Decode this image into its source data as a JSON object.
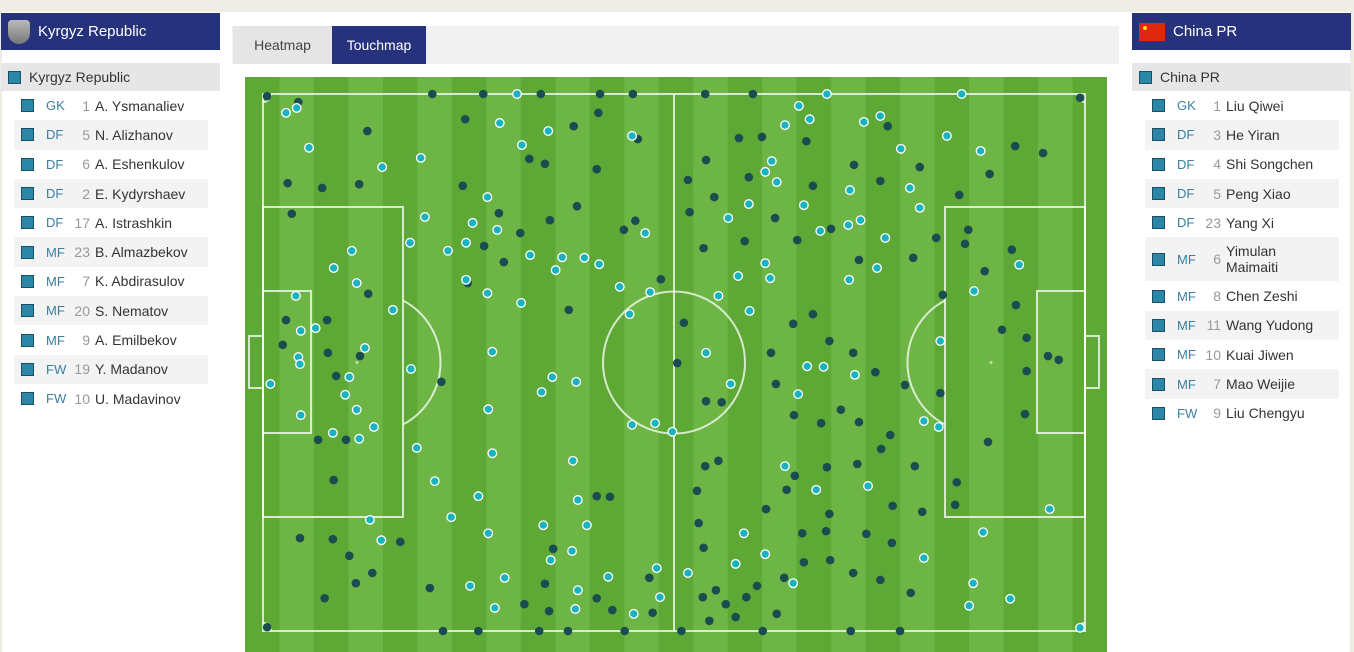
{
  "tabs": [
    {
      "label": "Heatmap",
      "active": false
    },
    {
      "label": "Touchmap",
      "active": true
    }
  ],
  "colors": {
    "header": "#27327c",
    "pitch_light": "#6db544",
    "pitch_dark": "#5ea935",
    "team_a_dot": "#1b4c50",
    "team_b_dot": "#1ab2bf"
  },
  "home": {
    "name": "Kyrgyz Republic",
    "icon": "shield-icon",
    "team_label": "Kyrgyz Republic",
    "players": [
      {
        "pos": "GK",
        "num": "1",
        "name": "A. Ysmanaliev"
      },
      {
        "pos": "DF",
        "num": "5",
        "name": "N. Alizhanov"
      },
      {
        "pos": "DF",
        "num": "6",
        "name": "A. Eshenkulov"
      },
      {
        "pos": "DF",
        "num": "2",
        "name": "E. Kydyrshaev"
      },
      {
        "pos": "DF",
        "num": "17",
        "name": "A. Istrashkin"
      },
      {
        "pos": "MF",
        "num": "23",
        "name": "B. Almazbekov"
      },
      {
        "pos": "MF",
        "num": "7",
        "name": "K. Abdirasulov"
      },
      {
        "pos": "MF",
        "num": "20",
        "name": "S. Nematov"
      },
      {
        "pos": "MF",
        "num": "9",
        "name": "A. Emilbekov"
      },
      {
        "pos": "FW",
        "num": "19",
        "name": "Y. Madanov"
      },
      {
        "pos": "FW",
        "num": "10",
        "name": "U. Madavinov"
      }
    ]
  },
  "away": {
    "name": "China PR",
    "icon": "china-flag-icon",
    "team_label": "China PR",
    "players": [
      {
        "pos": "GK",
        "num": "1",
        "name": "Liu Qiwei"
      },
      {
        "pos": "DF",
        "num": "3",
        "name": "He Yiran"
      },
      {
        "pos": "DF",
        "num": "4",
        "name": "Shi Songchen"
      },
      {
        "pos": "DF",
        "num": "5",
        "name": "Peng Xiao"
      },
      {
        "pos": "DF",
        "num": "23",
        "name": "Yang Xi"
      },
      {
        "pos": "MF",
        "num": "6",
        "name": "Yimulan Maimaiti"
      },
      {
        "pos": "MF",
        "num": "8",
        "name": "Chen Zeshi"
      },
      {
        "pos": "MF",
        "num": "11",
        "name": "Wang Yudong"
      },
      {
        "pos": "MF",
        "num": "10",
        "name": "Kuai Jiwen"
      },
      {
        "pos": "MF",
        "num": "7",
        "name": "Mao Weijie"
      },
      {
        "pos": "FW",
        "num": "9",
        "name": "Liu Chengyu"
      }
    ]
  },
  "touches": {
    "dark": [
      [
        0.5,
        0.4
      ],
      [
        20.6,
        0
      ],
      [
        26.8,
        0
      ],
      [
        33.8,
        0
      ],
      [
        41,
        0
      ],
      [
        45,
        0
      ],
      [
        53.8,
        0
      ],
      [
        59.6,
        0
      ],
      [
        4.3,
        1.5
      ],
      [
        12.7,
        6.9
      ],
      [
        24.6,
        4.7
      ],
      [
        37.8,
        6
      ],
      [
        40.8,
        3.5
      ],
      [
        45.6,
        8.4
      ],
      [
        34.3,
        13
      ],
      [
        40.6,
        14
      ],
      [
        32.4,
        12.1
      ],
      [
        3,
        16.6
      ],
      [
        7.2,
        17.5
      ],
      [
        11.7,
        16.8
      ],
      [
        24.3,
        17.1
      ],
      [
        3.5,
        22.3
      ],
      [
        28.7,
        22.2
      ],
      [
        31.3,
        25.9
      ],
      [
        38.2,
        20.9
      ],
      [
        34.9,
        23.5
      ],
      [
        43.9,
        25.3
      ],
      [
        45.3,
        23.6
      ],
      [
        26.9,
        28.3
      ],
      [
        29.3,
        31.3
      ],
      [
        24.9,
        35.2
      ],
      [
        12.8,
        37.2
      ],
      [
        7.8,
        42.1
      ],
      [
        2.8,
        42.1
      ],
      [
        2.4,
        46.7
      ],
      [
        7.9,
        48.2
      ],
      [
        11.8,
        48.8
      ],
      [
        8.9,
        52.5
      ],
      [
        10.1,
        64.4
      ],
      [
        6.7,
        64.4
      ],
      [
        8.6,
        71.9
      ],
      [
        21.7,
        53.6
      ],
      [
        37.2,
        40.2
      ],
      [
        48.4,
        34.5
      ],
      [
        51.2,
        42.6
      ],
      [
        50.4,
        50.1
      ],
      [
        53.9,
        57.2
      ],
      [
        55.8,
        57.4
      ],
      [
        53.8,
        69.3
      ],
      [
        55.4,
        68.3
      ],
      [
        52.8,
        73.9
      ],
      [
        53,
        79.9
      ],
      [
        53.6,
        84.5
      ],
      [
        55.1,
        92.4
      ],
      [
        53.5,
        93.7
      ],
      [
        56.3,
        95
      ],
      [
        58.8,
        93.7
      ],
      [
        60.1,
        91.6
      ],
      [
        63.4,
        90.1
      ],
      [
        65.8,
        87.2
      ],
      [
        68.5,
        81.4
      ],
      [
        69,
        86.8
      ],
      [
        71.8,
        89.2
      ],
      [
        75.1,
        90.5
      ],
      [
        78.8,
        92.9
      ],
      [
        73.4,
        81.9
      ],
      [
        76.5,
        83.6
      ],
      [
        80.2,
        77.8
      ],
      [
        76.6,
        76.7
      ],
      [
        68.9,
        78.2
      ],
      [
        65.6,
        81.8
      ],
      [
        63.7,
        73.7
      ],
      [
        61.2,
        77.3
      ],
      [
        64.7,
        71.1
      ],
      [
        68.6,
        69.5
      ],
      [
        72.3,
        68.9
      ],
      [
        75.2,
        66.1
      ],
      [
        79.3,
        69.3
      ],
      [
        76.3,
        63.5
      ],
      [
        72.5,
        61.1
      ],
      [
        70.3,
        58.8
      ],
      [
        67.9,
        61.3
      ],
      [
        64.6,
        59.8
      ],
      [
        62.4,
        54
      ],
      [
        61.8,
        48.2
      ],
      [
        64.5,
        42.8
      ],
      [
        66.9,
        41
      ],
      [
        68.9,
        46
      ],
      [
        71.8,
        48.2
      ],
      [
        74.5,
        51.8
      ],
      [
        78.1,
        54.2
      ],
      [
        82.4,
        55.7
      ],
      [
        89.9,
        43.9
      ],
      [
        92.9,
        45.4
      ],
      [
        92.7,
        59.6
      ],
      [
        91.6,
        39.3
      ],
      [
        91.1,
        29
      ],
      [
        87.8,
        33
      ],
      [
        85.4,
        27.9
      ],
      [
        82.7,
        37.4
      ],
      [
        81.9,
        26.8
      ],
      [
        79.1,
        30.5
      ],
      [
        72.5,
        30.9
      ],
      [
        69.1,
        25.1
      ],
      [
        65,
        27.2
      ],
      [
        62.3,
        23.1
      ],
      [
        58.6,
        27.4
      ],
      [
        53.6,
        28.7
      ],
      [
        51.9,
        22
      ],
      [
        51.7,
        16
      ],
      [
        54.9,
        19.2
      ],
      [
        59.1,
        15.5
      ],
      [
        57.9,
        8.2
      ],
      [
        60.7,
        8
      ],
      [
        53.9,
        12.3
      ],
      [
        66.1,
        8.8
      ],
      [
        66.9,
        17.1
      ],
      [
        71.9,
        13.2
      ],
      [
        75.1,
        16.2
      ],
      [
        76,
        6
      ],
      [
        79.9,
        13.6
      ],
      [
        88.4,
        14.9
      ],
      [
        91.5,
        9.7
      ],
      [
        94.9,
        11
      ],
      [
        84.7,
        18.8
      ],
      [
        85.8,
        25.3
      ],
      [
        95.5,
        48.8
      ],
      [
        96.8,
        49.5
      ],
      [
        92.9,
        51.6
      ],
      [
        88.2,
        64.8
      ],
      [
        84.4,
        72.3
      ],
      [
        84.2,
        76.5
      ],
      [
        99.4,
        0.7
      ],
      [
        0.5,
        99.3
      ],
      [
        21.9,
        100
      ],
      [
        26.2,
        100
      ],
      [
        33.6,
        100
      ],
      [
        37.1,
        100
      ],
      [
        44,
        100
      ],
      [
        50.9,
        100
      ],
      [
        60.8,
        100
      ],
      [
        71.5,
        100
      ],
      [
        77.5,
        100
      ],
      [
        7.5,
        93.9
      ],
      [
        11.3,
        91.1
      ],
      [
        13.3,
        89.2
      ],
      [
        16.7,
        83.4
      ],
      [
        20.3,
        92
      ],
      [
        31.8,
        95
      ],
      [
        34.8,
        96.3
      ],
      [
        40.6,
        93.9
      ],
      [
        42.5,
        96.1
      ],
      [
        40.6,
        74.9
      ],
      [
        42.2,
        75
      ],
      [
        35.3,
        84.7
      ],
      [
        34.3,
        91.2
      ],
      [
        4.5,
        82.7
      ],
      [
        8.5,
        82.9
      ],
      [
        10.5,
        86
      ],
      [
        47,
        90.1
      ],
      [
        47.4,
        96.6
      ],
      [
        54.3,
        98.1
      ],
      [
        57.5,
        97.4
      ],
      [
        62.5,
        96.8
      ]
    ],
    "light": [
      [
        2.8,
        3.5
      ],
      [
        4.1,
        2.6
      ],
      [
        5.6,
        10
      ],
      [
        14.5,
        13.6
      ],
      [
        19.2,
        11.9
      ],
      [
        19.7,
        22.9
      ],
      [
        17.9,
        27.7
      ],
      [
        10.8,
        29.2
      ],
      [
        8.6,
        32.4
      ],
      [
        11.4,
        35.2
      ],
      [
        4,
        37.6
      ],
      [
        4.6,
        44.1
      ],
      [
        6.4,
        43.6
      ],
      [
        4.3,
        49
      ],
      [
        4.5,
        50.3
      ],
      [
        0.9,
        54
      ],
      [
        10.5,
        52.7
      ],
      [
        10,
        56
      ],
      [
        12.4,
        47.3
      ],
      [
        11.4,
        58.8
      ],
      [
        13.5,
        62
      ],
      [
        8.5,
        63.1
      ],
      [
        4.6,
        59.8
      ],
      [
        11.7,
        64.2
      ],
      [
        18,
        51.2
      ],
      [
        15.8,
        40.2
      ],
      [
        22.5,
        29.2
      ],
      [
        24.7,
        27.7
      ],
      [
        24.7,
        34.6
      ],
      [
        27.3,
        37.1
      ],
      [
        27.3,
        19.2
      ],
      [
        28.5,
        25.3
      ],
      [
        31.4,
        38.9
      ],
      [
        27.9,
        48
      ],
      [
        33.9,
        55.5
      ],
      [
        35.2,
        52.7
      ],
      [
        38.1,
        53.6
      ],
      [
        27.4,
        58.7
      ],
      [
        18.7,
        65.9
      ],
      [
        27.9,
        66.9
      ],
      [
        20.9,
        72.1
      ],
      [
        26.2,
        74.9
      ],
      [
        22.9,
        78.8
      ],
      [
        27.4,
        81.8
      ],
      [
        34.1,
        80.3
      ],
      [
        38.3,
        75.6
      ],
      [
        39.4,
        80.3
      ],
      [
        37.7,
        68.3
      ],
      [
        13,
        79.3
      ],
      [
        14.4,
        83.1
      ],
      [
        25.2,
        91.6
      ],
      [
        28.2,
        95.7
      ],
      [
        29.4,
        90.1
      ],
      [
        35,
        86.8
      ],
      [
        37.6,
        85.1
      ],
      [
        38.3,
        92.4
      ],
      [
        38,
        95.9
      ],
      [
        42,
        89.9
      ],
      [
        45.1,
        96.8
      ],
      [
        48.3,
        93.7
      ],
      [
        47.9,
        88.3
      ],
      [
        51.7,
        89.2
      ],
      [
        58.5,
        81.8
      ],
      [
        61.1,
        85.7
      ],
      [
        57.5,
        87.5
      ],
      [
        64.5,
        91.1
      ],
      [
        67.3,
        73.7
      ],
      [
        73.6,
        73
      ],
      [
        63.5,
        69.3
      ],
      [
        65.1,
        55.9
      ],
      [
        66.2,
        50.7
      ],
      [
        68.2,
        50.8
      ],
      [
        72,
        52.3
      ],
      [
        56.9,
        54
      ],
      [
        53.9,
        48.2
      ],
      [
        57.8,
        33.9
      ],
      [
        61.7,
        34.3
      ],
      [
        59.2,
        40.4
      ],
      [
        55.4,
        37.6
      ],
      [
        47.1,
        36.9
      ],
      [
        44.6,
        41
      ],
      [
        44.9,
        61.6
      ],
      [
        47.7,
        61.3
      ],
      [
        49.8,
        62.9
      ],
      [
        56.6,
        23.1
      ],
      [
        59.1,
        20.5
      ],
      [
        61.1,
        14.5
      ],
      [
        61.9,
        12.5
      ],
      [
        62.5,
        16.4
      ],
      [
        63.5,
        5.8
      ],
      [
        65.2,
        2.2
      ],
      [
        66.5,
        4.7
      ],
      [
        68.6,
        0
      ],
      [
        73.1,
        5.2
      ],
      [
        75.1,
        4.1
      ],
      [
        77.6,
        10.2
      ],
      [
        78.7,
        17.5
      ],
      [
        79.9,
        21.2
      ],
      [
        71.4,
        17.9
      ],
      [
        72.7,
        23.5
      ],
      [
        71.2,
        24.4
      ],
      [
        75.7,
        26.8
      ],
      [
        74.7,
        32.4
      ],
      [
        71.3,
        34.6
      ],
      [
        67.8,
        25.5
      ],
      [
        65.8,
        20.7
      ],
      [
        61.1,
        31.5
      ],
      [
        85,
        0
      ],
      [
        83.2,
        7.8
      ],
      [
        87.3,
        10.6
      ],
      [
        92,
        31.8
      ],
      [
        86.5,
        36.7
      ],
      [
        82.4,
        46
      ],
      [
        80.4,
        60.9
      ],
      [
        82.2,
        62
      ],
      [
        95.7,
        77.3
      ],
      [
        87.6,
        81.6
      ],
      [
        80.4,
        86.4
      ],
      [
        86.4,
        91.1
      ],
      [
        85.9,
        95.3
      ],
      [
        90.9,
        94
      ],
      [
        99.4,
        99.4
      ],
      [
        44.9,
        7.8
      ],
      [
        34.7,
        6.9
      ],
      [
        30.9,
        0
      ],
      [
        28.8,
        5.4
      ],
      [
        31.5,
        9.5
      ],
      [
        25.5,
        24
      ],
      [
        32.5,
        30
      ],
      [
        36.4,
        30.4
      ],
      [
        39.1,
        30.5
      ],
      [
        40.9,
        31.7
      ],
      [
        43.4,
        35.9
      ],
      [
        46.5,
        25.9
      ],
      [
        35.6,
        32.8
      ]
    ]
  }
}
